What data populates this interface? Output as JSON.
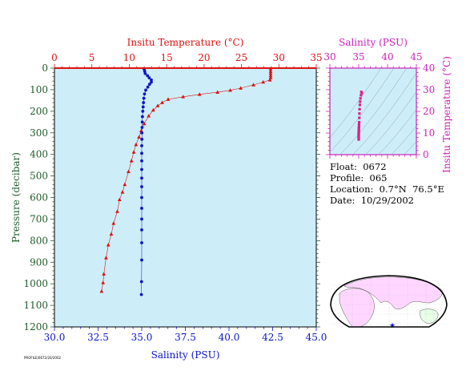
{
  "chart_data": [
    {
      "type": "scatter",
      "title": "",
      "top_axis_label": "Insitu Temperature (°C)",
      "top_axis_range": [
        0,
        35
      ],
      "top_ticks": [
        "0",
        "5",
        "10",
        "15",
        "20",
        "25",
        "30",
        "35"
      ],
      "bottom_axis_label": "Salinity (PSU)",
      "bottom_axis_range": [
        30,
        45
      ],
      "bottom_ticks": [
        "30.0",
        "32.5",
        "35.0",
        "37.5",
        "40.0",
        "42.5",
        "45.0"
      ],
      "ylabel": "Pressure (decibar)",
      "ylim": [
        1200,
        0
      ],
      "yticks": [
        "0",
        "100",
        "200",
        "300",
        "400",
        "500",
        "600",
        "700",
        "800",
        "900",
        "1000",
        "1100",
        "1200"
      ],
      "series": [
        {
          "name": "Insitu Temperature",
          "color": "#dd1111",
          "marker": "triangle",
          "points": [
            [
              28.9,
              5
            ],
            [
              28.9,
              15
            ],
            [
              28.9,
              25
            ],
            [
              28.9,
              35
            ],
            [
              28.9,
              45
            ],
            [
              28.8,
              55
            ],
            [
              27.9,
              65
            ],
            [
              26.6,
              78
            ],
            [
              24.9,
              93
            ],
            [
              23.5,
              103
            ],
            [
              21.8,
              112
            ],
            [
              19.4,
              122
            ],
            [
              17.2,
              133
            ],
            [
              15.2,
              145
            ],
            [
              14.4,
              160
            ],
            [
              13.8,
              175
            ],
            [
              13.2,
              195
            ],
            [
              12.6,
              222
            ],
            [
              12.0,
              258
            ],
            [
              11.6,
              290
            ],
            [
              11.3,
              320
            ],
            [
              10.9,
              355
            ],
            [
              10.6,
              390
            ],
            [
              10.3,
              430
            ],
            [
              9.9,
              480
            ],
            [
              9.4,
              540
            ],
            [
              9.1,
              575
            ],
            [
              8.7,
              610
            ],
            [
              8.4,
              665
            ],
            [
              7.9,
              720
            ],
            [
              7.6,
              770
            ],
            [
              7.2,
              820
            ],
            [
              6.9,
              880
            ],
            [
              6.6,
              955
            ],
            [
              6.5,
              995
            ],
            [
              6.3,
              1035
            ]
          ]
        },
        {
          "name": "Salinity",
          "color": "#0a14c8",
          "marker": "circle",
          "points": [
            [
              35.14,
              5
            ],
            [
              35.17,
              15
            ],
            [
              35.2,
              25
            ],
            [
              35.33,
              35
            ],
            [
              35.43,
              45
            ],
            [
              35.55,
              55
            ],
            [
              35.55,
              65
            ],
            [
              35.45,
              75
            ],
            [
              35.35,
              88
            ],
            [
              35.23,
              102
            ],
            [
              35.16,
              120
            ],
            [
              35.12,
              140
            ],
            [
              35.1,
              160
            ],
            [
              35.08,
              180
            ],
            [
              35.06,
              200
            ],
            [
              35.04,
              225
            ],
            [
              35.03,
              250
            ],
            [
              35.02,
              275
            ],
            [
              35.01,
              300
            ],
            [
              35.01,
              330
            ],
            [
              35.0,
              360
            ],
            [
              35.0,
              395
            ],
            [
              35.0,
              430
            ],
            [
              35.0,
              470
            ],
            [
              35.0,
              510
            ],
            [
              35.0,
              550
            ],
            [
              35.0,
              600
            ],
            [
              35.0,
              650
            ],
            [
              35.0,
              700
            ],
            [
              35.0,
              750
            ],
            [
              35.0,
              810
            ],
            [
              35.0,
              890
            ],
            [
              34.99,
              990
            ],
            [
              34.98,
              1050
            ]
          ]
        }
      ]
    },
    {
      "type": "scatter",
      "title": "",
      "top_axis_label": "Salinity (PSU)",
      "x_range": [
        30,
        45
      ],
      "xticks": [
        "30",
        "35",
        "40",
        "45"
      ],
      "ylabel": "Insitu Temperature (°C)",
      "y_range": [
        0,
        40
      ],
      "yticks": [
        "0",
        "10",
        "20",
        "30",
        "40"
      ],
      "series": [
        {
          "name": "T-S",
          "color": "#e0208a",
          "marker": "square",
          "points": [
            [
              35.45,
              29
            ],
            [
              35.55,
              28.5
            ],
            [
              35.4,
              27.5
            ],
            [
              35.3,
              26
            ],
            [
              35.25,
              24.5
            ],
            [
              35.2,
              23
            ],
            [
              35.15,
              21
            ],
            [
              35.12,
              19
            ],
            [
              35.1,
              17
            ],
            [
              35.08,
              15
            ],
            [
              35.06,
              14
            ],
            [
              35.05,
              13
            ],
            [
              35.04,
              12.5
            ],
            [
              35.03,
              12
            ],
            [
              35.02,
              11.5
            ],
            [
              35.02,
              11
            ],
            [
              35.01,
              10.5
            ],
            [
              35.0,
              10
            ],
            [
              35.0,
              9.5
            ],
            [
              35.0,
              9
            ],
            [
              35.0,
              8.5
            ],
            [
              35.0,
              8
            ],
            [
              35.0,
              7.5
            ],
            [
              35.0,
              7
            ]
          ]
        }
      ]
    }
  ],
  "info": {
    "float": "Float:  0672",
    "profile": "Profile:  065",
    "location": "Location:  0.7°N  76.5°E",
    "date": "Date:  10/29/2002"
  },
  "stamp": "PROFILE/0672/20/2002",
  "colors": {
    "plot_bg": "#cdeef8",
    "temperature": "#dd1111",
    "salinity": "#0a14c8",
    "ts": "#e0208a",
    "pressure_axis": "#1e5b2a",
    "ts_axis": "#cc22bb",
    "map_land": "#ffd6ff",
    "map_ocean": "#ffffff",
    "map_land2": "#e6ffe6"
  }
}
